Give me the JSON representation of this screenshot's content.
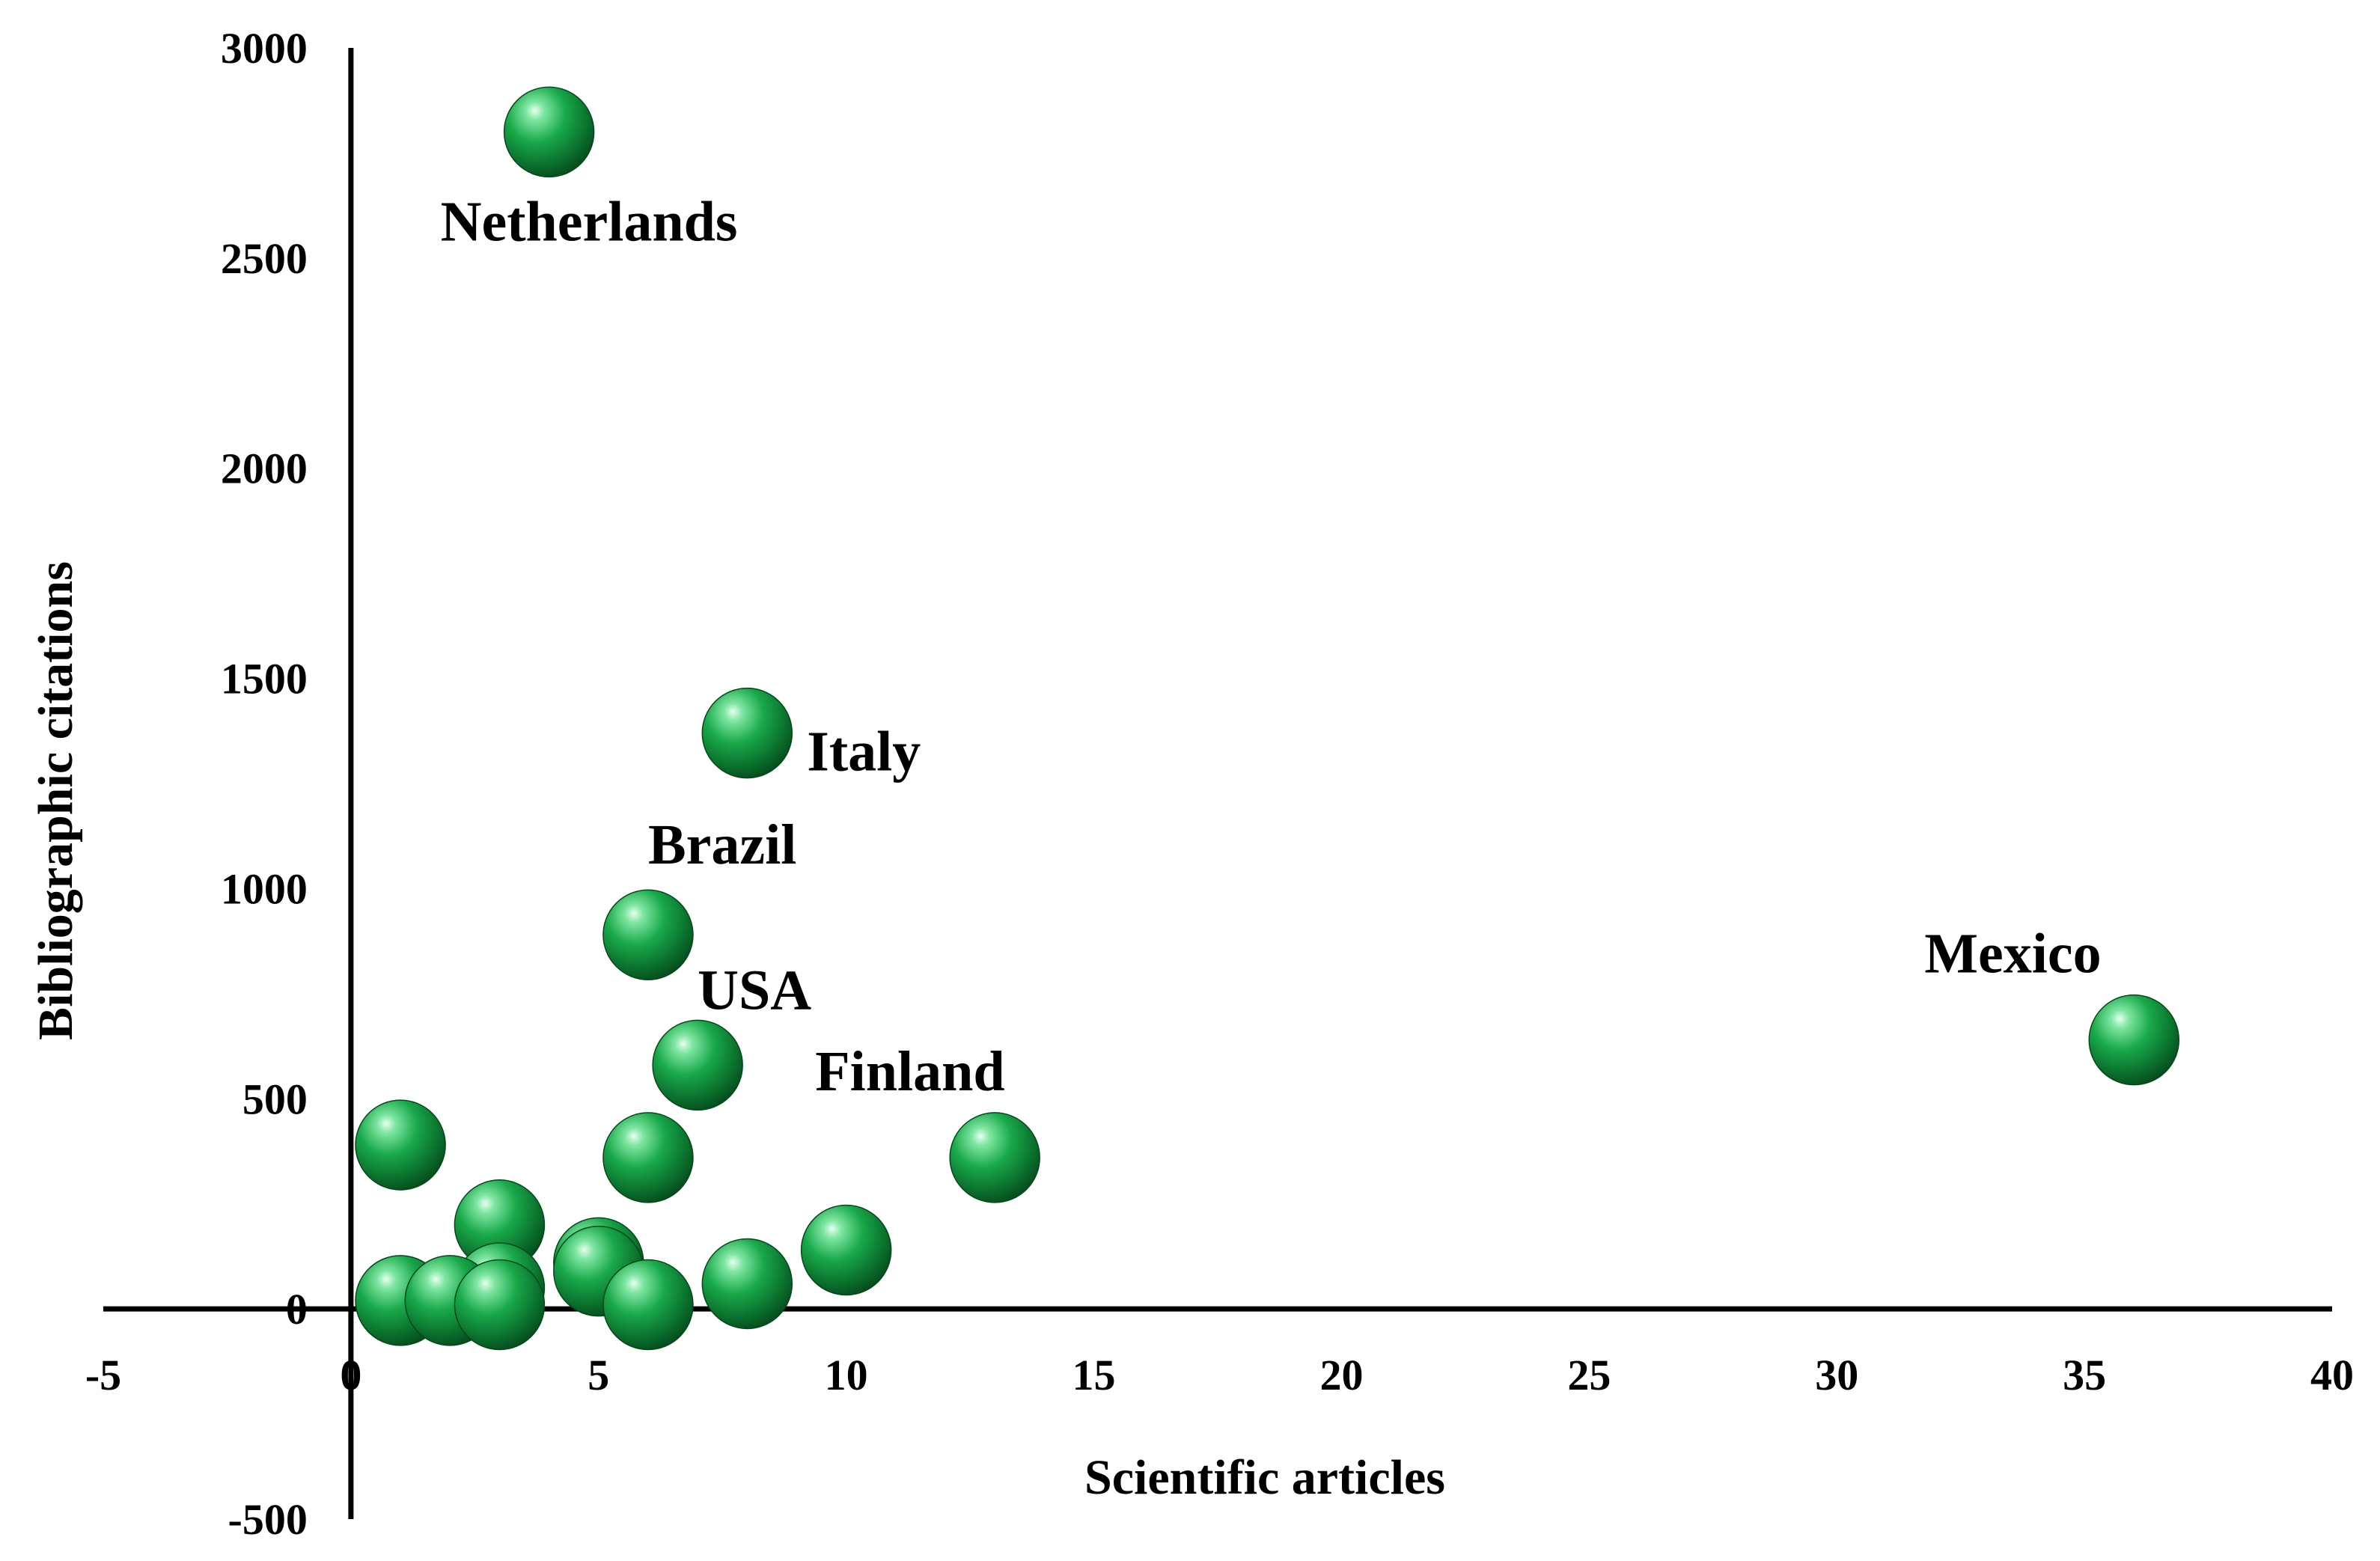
{
  "chart_data": {
    "type": "scatter",
    "title": "",
    "xlabel": "Scientific articles",
    "ylabel": "Bibliographic citations",
    "xlim": [
      -5,
      40
    ],
    "ylim": [
      -500,
      3000
    ],
    "x_ticks": [
      -5,
      0,
      5,
      10,
      15,
      20,
      25,
      30,
      35,
      40
    ],
    "y_ticks": [
      -500,
      0,
      500,
      1000,
      1500,
      2000,
      2500,
      3000
    ],
    "grid": false,
    "legend": "none",
    "marker_color": "#19a94a",
    "points": [
      {
        "x": 4,
        "y": 2800,
        "label": "Netherlands"
      },
      {
        "x": 8,
        "y": 1370,
        "label": "Italy"
      },
      {
        "x": 6,
        "y": 890,
        "label": "Brazil"
      },
      {
        "x": 7,
        "y": 580,
        "label": "USA"
      },
      {
        "x": 13,
        "y": 360,
        "label": "Finland"
      },
      {
        "x": 36,
        "y": 640,
        "label": "Mexico"
      },
      {
        "x": 1,
        "y": 390,
        "label": ""
      },
      {
        "x": 6,
        "y": 360,
        "label": ""
      },
      {
        "x": 3,
        "y": 200,
        "label": ""
      },
      {
        "x": 10,
        "y": 140,
        "label": ""
      },
      {
        "x": 5,
        "y": 110,
        "label": ""
      },
      {
        "x": 3,
        "y": 50,
        "label": ""
      },
      {
        "x": 8,
        "y": 60,
        "label": ""
      },
      {
        "x": 5,
        "y": 90,
        "label": ""
      },
      {
        "x": 1,
        "y": 20,
        "label": ""
      },
      {
        "x": 2,
        "y": 20,
        "label": ""
      },
      {
        "x": 3,
        "y": 10,
        "label": ""
      },
      {
        "x": 6,
        "y": 10,
        "label": ""
      }
    ]
  }
}
